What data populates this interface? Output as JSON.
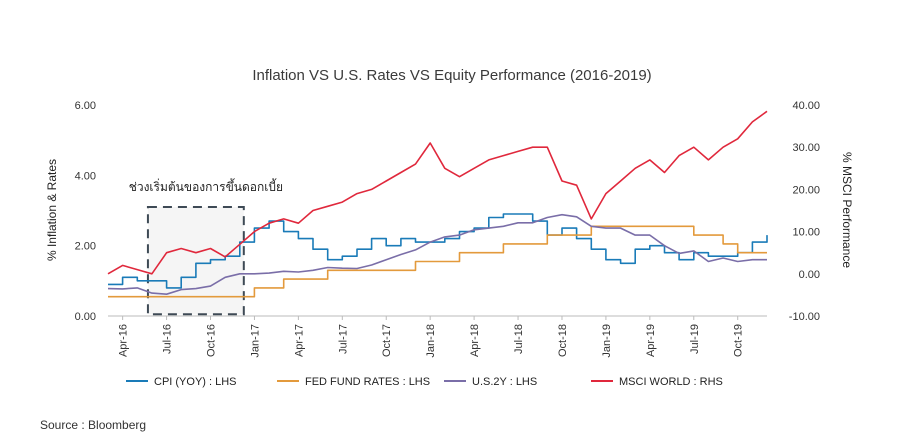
{
  "chart_data": {
    "type": "line",
    "title": "Inflation VS U.S. Rates VS Equity Performance (2016-2019)",
    "ylabel_left": "% Inflation & Rates",
    "ylabel_right": "% MSCI Performance",
    "ylim_left": [
      0,
      6
    ],
    "ylim_right": [
      -10,
      40
    ],
    "yticks_left": [
      "0.00",
      "2.00",
      "4.00",
      "6.00"
    ],
    "yticks_right": [
      "-10.00",
      "0.00",
      "10.00",
      "20.00",
      "30.00",
      "40.00"
    ],
    "x_months": [
      "2016-03",
      "2016-04",
      "2016-05",
      "2016-06",
      "2016-07",
      "2016-08",
      "2016-09",
      "2016-10",
      "2016-11",
      "2016-12",
      "2017-01",
      "2017-02",
      "2017-03",
      "2017-04",
      "2017-05",
      "2017-06",
      "2017-07",
      "2017-08",
      "2017-09",
      "2017-10",
      "2017-11",
      "2017-12",
      "2018-01",
      "2018-02",
      "2018-03",
      "2018-04",
      "2018-05",
      "2018-06",
      "2018-07",
      "2018-08",
      "2018-09",
      "2018-10",
      "2018-11",
      "2018-12",
      "2019-01",
      "2019-02",
      "2019-03",
      "2019-04",
      "2019-05",
      "2019-06",
      "2019-07",
      "2019-08",
      "2019-09",
      "2019-10",
      "2019-11",
      "2019-12"
    ],
    "x_tick_labels": [
      "Apr-16",
      "Jul-16",
      "Oct-16",
      "Jan-17",
      "Apr-17",
      "Jul-17",
      "Oct-17",
      "Jan-18",
      "Apr-18",
      "Jul-18",
      "Oct-18",
      "Jan-19",
      "Apr-19",
      "Jul-19",
      "Oct-19"
    ],
    "series": [
      {
        "name": "CPI (YOY) : LHS",
        "axis": "left",
        "color": "#1a7bb8",
        "values": [
          0.9,
          1.1,
          1.0,
          1.0,
          0.8,
          1.1,
          1.5,
          1.6,
          1.7,
          2.1,
          2.5,
          2.7,
          2.4,
          2.2,
          1.9,
          1.6,
          1.7,
          1.9,
          2.2,
          2.0,
          2.2,
          2.1,
          2.1,
          2.2,
          2.4,
          2.5,
          2.8,
          2.9,
          2.9,
          2.7,
          2.3,
          2.5,
          2.2,
          1.9,
          1.6,
          1.5,
          1.9,
          2.0,
          1.8,
          1.6,
          1.8,
          1.7,
          1.7,
          1.8,
          2.1,
          2.3
        ]
      },
      {
        "name": "FED FUND RATES : LHS",
        "axis": "left",
        "color": "#e39a3c",
        "values": [
          0.55,
          0.55,
          0.55,
          0.55,
          0.55,
          0.55,
          0.55,
          0.55,
          0.55,
          0.55,
          0.8,
          0.8,
          1.05,
          1.05,
          1.05,
          1.3,
          1.3,
          1.3,
          1.3,
          1.3,
          1.3,
          1.55,
          1.55,
          1.55,
          1.8,
          1.8,
          1.8,
          2.05,
          2.05,
          2.05,
          2.3,
          2.3,
          2.3,
          2.55,
          2.55,
          2.55,
          2.55,
          2.55,
          2.55,
          2.55,
          2.3,
          2.3,
          2.05,
          1.8,
          1.8,
          1.8
        ]
      },
      {
        "name": "U.S.2Y : LHS",
        "axis": "left",
        "color": "#7a6ea8",
        "values": [
          0.78,
          0.77,
          0.8,
          0.65,
          0.62,
          0.75,
          0.78,
          0.85,
          1.1,
          1.2,
          1.2,
          1.22,
          1.27,
          1.25,
          1.3,
          1.38,
          1.36,
          1.35,
          1.45,
          1.6,
          1.75,
          1.88,
          2.1,
          2.25,
          2.3,
          2.45,
          2.5,
          2.55,
          2.65,
          2.65,
          2.8,
          2.88,
          2.82,
          2.55,
          2.5,
          2.5,
          2.3,
          2.3,
          2.0,
          1.78,
          1.85,
          1.55,
          1.65,
          1.55,
          1.6,
          1.6
        ]
      },
      {
        "name": "MSCI WORLD : RHS",
        "axis": "right",
        "color": "#e0283c",
        "values": [
          0,
          2,
          1,
          0,
          5,
          6,
          5,
          6,
          4,
          7,
          10,
          12,
          13,
          12,
          15,
          16,
          17,
          19,
          20,
          22,
          24,
          26,
          31,
          25,
          23,
          25,
          27,
          28,
          29,
          30,
          30,
          22,
          21,
          13,
          19,
          22,
          25,
          27,
          24,
          28,
          30,
          27,
          30,
          32,
          36,
          38.5
        ]
      }
    ],
    "legend": "bottom",
    "annotation": {
      "text": "ช่วงเริ่มต้นของการขึ้นดอกเบี้ย",
      "x_range": [
        "2016-06",
        "2016-12"
      ],
      "y_range_left": [
        0.05,
        3.1
      ]
    }
  },
  "source": "Source : Bloomberg"
}
